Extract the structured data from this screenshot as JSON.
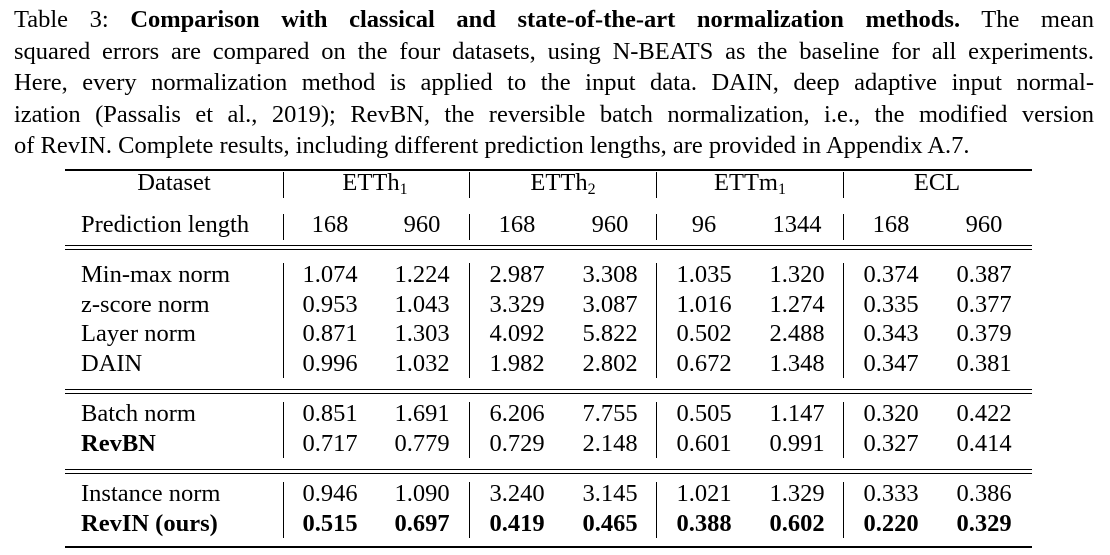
{
  "caption": {
    "label": "Table 3:",
    "title": "Comparison with classical and state-of-the-art normalization methods.",
    "line1_rest": "The mean",
    "line2": "squared errors are compared on the four datasets, using N-BEATS as the baseline for all experiments.",
    "line3": "Here, every normalization method is applied to the input data. DAIN, deep adaptive input normal-",
    "line4": "ization (Passalis et al., 2019); RevBN, the reversible batch normalization, i.e., the modified version",
    "line5": "of RevIN. Complete results, including different prediction lengths, are provided in Appendix A.7."
  },
  "table": {
    "header": {
      "dataset_label": "Dataset",
      "datasets": [
        {
          "name": "ETTh",
          "sub": "1"
        },
        {
          "name": "ETTh",
          "sub": "2"
        },
        {
          "name": "ETTm",
          "sub": "1"
        },
        {
          "name": "ECL",
          "sub": ""
        }
      ],
      "pred_label": "Prediction length",
      "pred_lengths": [
        "168",
        "960",
        "168",
        "960",
        "96",
        "1344",
        "168",
        "960"
      ]
    },
    "groups": [
      [
        {
          "method": "Min-max norm",
          "bold": false,
          "values": [
            "1.074",
            "1.224",
            "2.987",
            "3.308",
            "1.035",
            "1.320",
            "0.374",
            "0.387"
          ]
        },
        {
          "method": "z-score norm",
          "bold": false,
          "values": [
            "0.953",
            "1.043",
            "3.329",
            "3.087",
            "1.016",
            "1.274",
            "0.335",
            "0.377"
          ]
        },
        {
          "method": "Layer norm",
          "bold": false,
          "values": [
            "0.871",
            "1.303",
            "4.092",
            "5.822",
            "0.502",
            "2.488",
            "0.343",
            "0.379"
          ]
        },
        {
          "method": "DAIN",
          "bold": false,
          "values": [
            "0.996",
            "1.032",
            "1.982",
            "2.802",
            "0.672",
            "1.348",
            "0.347",
            "0.381"
          ]
        }
      ],
      [
        {
          "method": "Batch norm",
          "bold": false,
          "values": [
            "0.851",
            "1.691",
            "6.206",
            "7.755",
            "0.505",
            "1.147",
            "0.320",
            "0.422"
          ]
        },
        {
          "method": "RevBN",
          "bold": true,
          "values": [
            "0.717",
            "0.779",
            "0.729",
            "2.148",
            "0.601",
            "0.991",
            "0.327",
            "0.414"
          ]
        }
      ],
      [
        {
          "method": "Instance norm",
          "bold": false,
          "values": [
            "0.946",
            "1.090",
            "3.240",
            "3.145",
            "1.021",
            "1.329",
            "0.333",
            "0.386"
          ]
        },
        {
          "method": "RevIN (ours)",
          "bold": true,
          "values": [
            "0.515",
            "0.697",
            "0.419",
            "0.465",
            "0.388",
            "0.602",
            "0.220",
            "0.329"
          ],
          "bold_values": true
        }
      ]
    ]
  }
}
